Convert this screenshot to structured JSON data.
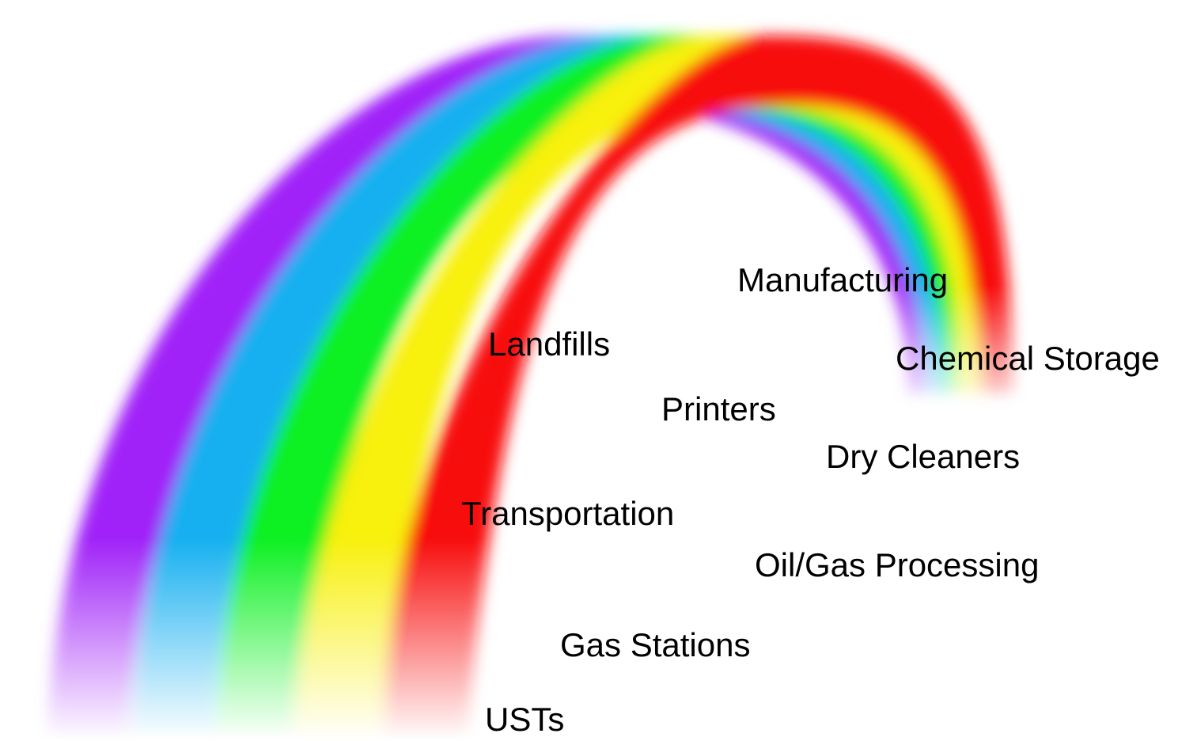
{
  "labels": [
    "Manufacturing",
    "Landfills",
    "Chemical Storage",
    "Printers",
    "Dry Cleaners",
    "Transportation",
    "Oil/Gas Processing",
    "Gas Stations",
    "USTs"
  ]
}
